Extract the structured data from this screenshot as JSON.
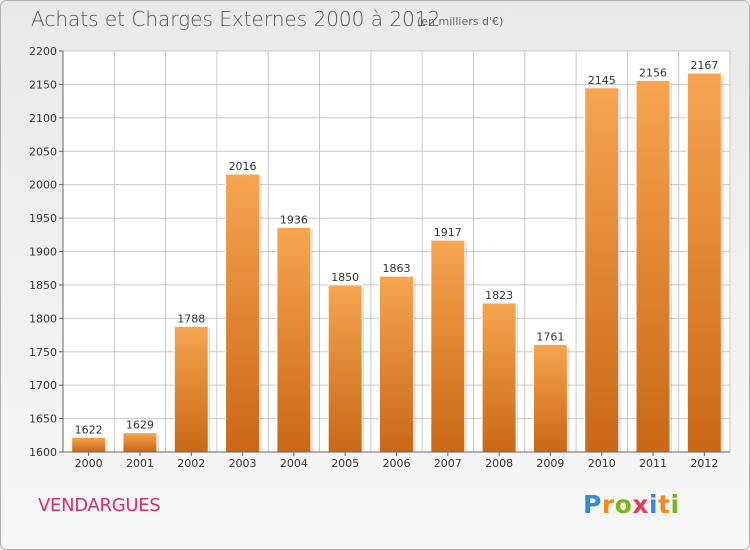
{
  "header": {
    "title": "Achats et Charges Externes 2000 à 2012",
    "subtitle": "(en milliers d'€)"
  },
  "footer": {
    "city": "VENDARGUES",
    "logo": {
      "text": "Proxiti",
      "letters": [
        {
          "ch": "P",
          "color": "#2e8fd6"
        },
        {
          "ch": "r",
          "color": "#f08a1c"
        },
        {
          "ch": "o",
          "color": "#7ab51d"
        },
        {
          "ch": "x",
          "color": "#e23a5a"
        },
        {
          "ch": "i",
          "color": "#2e8fd6"
        },
        {
          "ch": "t",
          "color": "#f08a1c"
        },
        {
          "ch": "i",
          "color": "#7ab51d"
        }
      ]
    }
  },
  "colors": {
    "bar_top": "#f7a550",
    "bar_bottom": "#c96816",
    "grid": "#c8c8c8",
    "plot_bg": "#ffffff",
    "city_text": "#d0306f"
  },
  "chart_data": {
    "type": "bar",
    "title": "Achats et Charges Externes 2000 à 2012",
    "subtitle": "(en milliers d'€)",
    "categories": [
      "2000",
      "2001",
      "2002",
      "2003",
      "2004",
      "2005",
      "2006",
      "2007",
      "2008",
      "2009",
      "2010",
      "2011",
      "2012"
    ],
    "values": [
      1622,
      1629,
      1788,
      2016,
      1936,
      1850,
      1863,
      1917,
      1823,
      1761,
      2145,
      2156,
      2167
    ],
    "yticks": [
      1600,
      1650,
      1700,
      1750,
      1800,
      1850,
      1900,
      1950,
      2000,
      2050,
      2100,
      2150,
      2200
    ],
    "ylim": [
      1600,
      2200
    ],
    "grid": true,
    "legend": "none"
  }
}
